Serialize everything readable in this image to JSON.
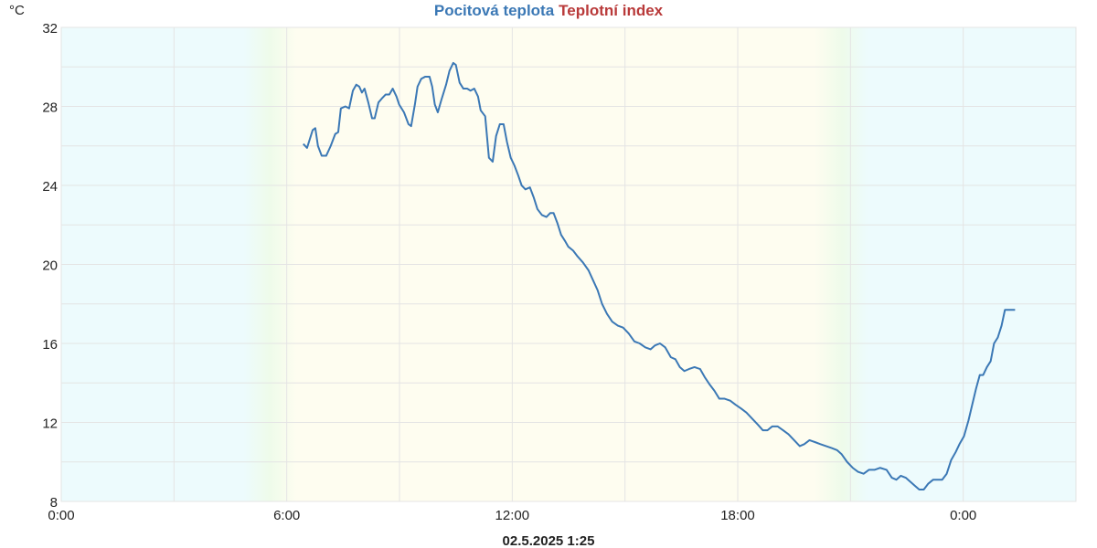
{
  "chart_data": {
    "type": "line",
    "ylabel": "°C",
    "xlabel": "02.5.2025 1:25",
    "xlim": [
      0,
      27
    ],
    "xticks": [
      {
        "value": 0,
        "label": "0:00"
      },
      {
        "value": 6,
        "label": "6:00"
      },
      {
        "value": 12,
        "label": "12:00"
      },
      {
        "value": 18,
        "label": "18:00"
      },
      {
        "value": 24,
        "label": "0:00"
      }
    ],
    "ylim": [
      8,
      32
    ],
    "yticks": [
      8,
      12,
      16,
      20,
      24,
      28,
      32
    ],
    "grid": true,
    "x": [
      6.44,
      6.54,
      6.69,
      6.76,
      6.83,
      6.93,
      7.05,
      7.17,
      7.29,
      7.37,
      7.44,
      7.56,
      7.66,
      7.76,
      7.85,
      7.93,
      8.0,
      8.07,
      8.17,
      8.27,
      8.34,
      8.44,
      8.53,
      8.63,
      8.73,
      8.82,
      8.92,
      8.99,
      9.12,
      9.24,
      9.31,
      9.41,
      9.48,
      9.58,
      9.68,
      9.8,
      9.87,
      9.94,
      10.02,
      10.11,
      10.24,
      10.33,
      10.43,
      10.5,
      10.6,
      10.7,
      10.8,
      10.89,
      10.99,
      11.09,
      11.16,
      11.28,
      11.38,
      11.48,
      11.57,
      11.67,
      11.77,
      11.86,
      11.96,
      12.06,
      12.16,
      12.25,
      12.35,
      12.47,
      12.57,
      12.67,
      12.79,
      12.91,
      13.01,
      13.1,
      13.2,
      13.3,
      13.4,
      13.49,
      13.62,
      13.74,
      13.88,
      14.03,
      14.15,
      14.27,
      14.39,
      14.52,
      14.66,
      14.81,
      14.95,
      15.1,
      15.25,
      15.39,
      15.54,
      15.68,
      15.8,
      15.93,
      16.07,
      16.22,
      16.34,
      16.46,
      16.58,
      16.7,
      16.85,
      17.0,
      17.12,
      17.26,
      17.38,
      17.51,
      17.65,
      17.8,
      17.94,
      18.09,
      18.23,
      18.38,
      18.53,
      18.67,
      18.79,
      18.92,
      19.06,
      19.21,
      19.35,
      19.5,
      19.65,
      19.77,
      19.91,
      20.06,
      20.2,
      20.35,
      20.5,
      20.64,
      20.76,
      20.91,
      21.06,
      21.2,
      21.35,
      21.49,
      21.64,
      21.79,
      21.96,
      22.1,
      22.22,
      22.34,
      22.47,
      22.59,
      22.71,
      22.83,
      22.95,
      23.07,
      23.2,
      23.32,
      23.44,
      23.56,
      23.68,
      23.8,
      23.9,
      24.02,
      24.14,
      24.24,
      24.34,
      24.44,
      24.53,
      24.63,
      24.73,
      24.82,
      24.92,
      25.02,
      25.11,
      25.38
    ],
    "series": [
      {
        "name": "Pocitová teplota",
        "color": "#3b78b5",
        "values": [
          26.1,
          25.9,
          26.8,
          26.9,
          26.0,
          25.5,
          25.5,
          26.0,
          26.6,
          26.7,
          27.9,
          28.0,
          27.9,
          28.8,
          29.1,
          29.0,
          28.7,
          28.9,
          28.2,
          27.4,
          27.4,
          28.2,
          28.4,
          28.6,
          28.6,
          28.9,
          28.5,
          28.1,
          27.7,
          27.1,
          27.0,
          28.1,
          29.0,
          29.4,
          29.5,
          29.5,
          29.0,
          28.1,
          27.7,
          28.3,
          29.1,
          29.8,
          30.2,
          30.1,
          29.2,
          28.9,
          28.9,
          28.8,
          28.9,
          28.5,
          27.8,
          27.5,
          25.4,
          25.2,
          26.5,
          27.1,
          27.1,
          26.2,
          25.4,
          25.0,
          24.5,
          24.0,
          23.8,
          23.9,
          23.4,
          22.8,
          22.5,
          22.4,
          22.6,
          22.6,
          22.1,
          21.5,
          21.2,
          20.9,
          20.7,
          20.4,
          20.1,
          19.7,
          19.2,
          18.7,
          18.0,
          17.5,
          17.1,
          16.9,
          16.8,
          16.5,
          16.1,
          16.0,
          15.8,
          15.7,
          15.9,
          16.0,
          15.8,
          15.3,
          15.2,
          14.8,
          14.6,
          14.7,
          14.8,
          14.7,
          14.3,
          13.9,
          13.6,
          13.2,
          13.2,
          13.1,
          12.9,
          12.7,
          12.5,
          12.2,
          11.9,
          11.6,
          11.6,
          11.8,
          11.8,
          11.6,
          11.4,
          11.1,
          10.8,
          10.9,
          11.1,
          11.0,
          10.9,
          10.8,
          10.7,
          10.6,
          10.4,
          10.0,
          9.7,
          9.5,
          9.4,
          9.6,
          9.6,
          9.7,
          9.6,
          9.2,
          9.1,
          9.3,
          9.2,
          9.0,
          8.8,
          8.6,
          8.6,
          8.9,
          9.1,
          9.1,
          9.1,
          9.4,
          10.1,
          10.5,
          10.9,
          11.3,
          12.1,
          12.9,
          13.7,
          14.4,
          14.4,
          14.8,
          15.1,
          16.0,
          16.3,
          16.9,
          17.7,
          17.7
        ]
      },
      {
        "name": "Teplotní index",
        "color": "#b93a3a",
        "values": [
          null,
          null,
          null,
          null,
          null,
          null,
          null,
          null,
          null,
          null,
          null,
          null,
          null,
          null,
          null,
          null,
          null,
          null,
          null,
          null,
          null,
          null,
          null,
          null,
          null,
          null,
          null,
          null,
          null,
          null,
          null,
          null,
          null,
          null,
          null,
          null,
          null,
          null,
          null,
          null,
          null,
          null,
          null,
          null,
          null,
          null,
          null,
          null,
          null,
          null,
          null,
          null,
          null,
          null,
          null,
          null,
          null,
          null,
          null,
          null,
          null,
          null,
          null,
          null,
          null,
          null,
          null,
          null,
          null,
          null,
          null,
          null,
          null,
          null,
          null,
          null,
          null,
          null,
          null,
          null,
          null,
          null,
          null,
          null,
          null,
          null,
          null,
          null,
          null,
          null,
          null,
          null,
          null,
          null,
          null,
          null,
          null,
          null,
          null,
          null,
          null,
          null,
          null,
          null,
          null,
          null,
          null,
          null,
          null,
          null,
          null,
          null,
          null,
          null,
          null,
          null,
          null,
          null,
          null,
          null,
          null,
          null,
          null,
          null,
          null,
          null,
          null,
          null,
          null,
          null,
          null,
          null,
          null,
          null,
          null,
          null,
          null,
          null,
          null,
          null,
          null,
          null,
          null,
          null,
          null,
          null,
          null,
          null,
          null,
          null,
          null,
          null,
          null,
          null,
          null,
          null,
          null,
          null,
          null,
          null,
          null,
          null,
          null,
          null
        ]
      }
    ]
  }
}
